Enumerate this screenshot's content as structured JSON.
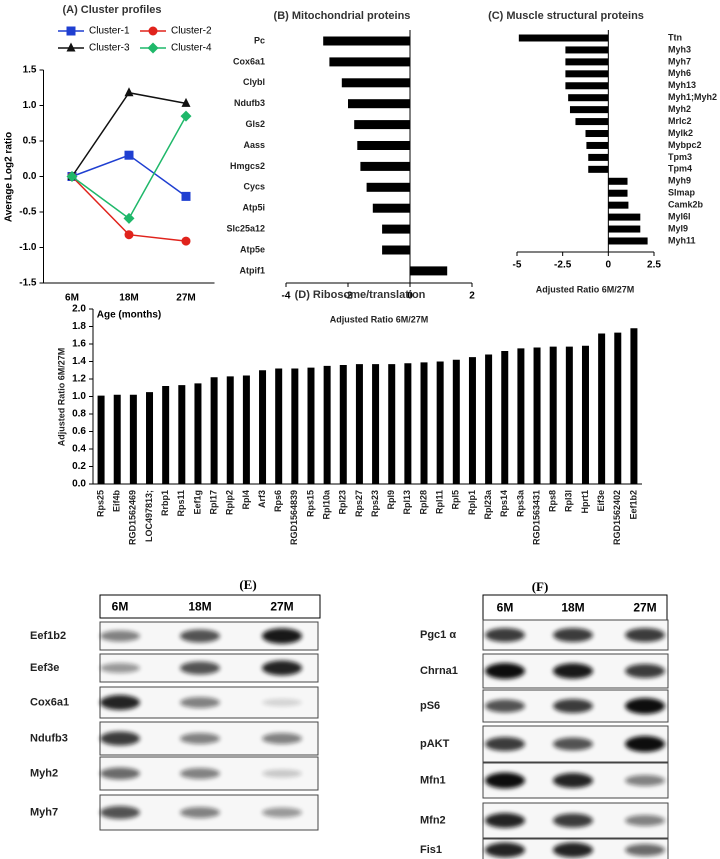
{
  "chart_data": [
    {
      "type": "line",
      "title": "(A) Cluster profiles",
      "xlabel": "Age (months)",
      "ylabel": "Average Log2 ratio",
      "categories": [
        "6M",
        "18M",
        "27M"
      ],
      "series": [
        {
          "name": "Cluster-1",
          "color": "#1f3fd1",
          "marker": "square",
          "values": [
            0,
            0.3,
            -0.28
          ]
        },
        {
          "name": "Cluster-2",
          "color": "#e0231c",
          "marker": "circle",
          "values": [
            0,
            -0.82,
            -0.91
          ]
        },
        {
          "name": "Cluster-3",
          "color": "#111111",
          "marker": "triangle",
          "values": [
            0,
            1.18,
            1.03
          ]
        },
        {
          "name": "Cluster-4",
          "color": "#1fb86a",
          "marker": "diamond",
          "values": [
            0,
            -0.59,
            0.85
          ]
        }
      ],
      "ylim": [
        -1.5,
        1.5
      ],
      "yticks": [
        1.5,
        {
          "value": 1,
          "label": "1.0"
        },
        0.5,
        {
          "value": 0,
          "label": "0.0"
        },
        -0.5,
        {
          "value": -1,
          "label": "-1.0"
        },
        -1.5
      ]
    },
    {
      "type": "barh",
      "title": "(B) Mitochondrial proteins",
      "xlabel": "Adjusted Ratio 6M/27M",
      "color": "#000000",
      "categories": [
        "Pc",
        "Cox6a1",
        "Clybl",
        "Ndufb3",
        "Gls2",
        "Aass",
        "Hmgcs2",
        "Cycs",
        "Atp5i",
        "Slc25a12",
        "Atp5e",
        "Atpif1"
      ],
      "values": [
        -2.8,
        -2.6,
        -2.2,
        -2.0,
        -1.8,
        -1.7,
        -1.6,
        -1.4,
        -1.2,
        -0.9,
        -0.9,
        1.2
      ],
      "xlim": [
        -4,
        2
      ],
      "xticks": [
        -4,
        -2,
        0,
        2
      ]
    },
    {
      "type": "barh",
      "title": "(C) Muscle structural proteins",
      "xlabel": "Adjusted Ratio 6M/27M",
      "color": "#000000",
      "categories": [
        "Ttn",
        "Myh3",
        "Myh7",
        "Myh6",
        "Myh13",
        "Myh1;Myh2",
        "Myh2",
        "Mrlc2",
        "Mylk2",
        "Mybpc2",
        "Tpm3",
        "Tpm4",
        "Myh9",
        "Slmap",
        "Camk2b",
        "Myl6l",
        "Myl9",
        "Myh11"
      ],
      "values": [
        -4.9,
        -2.35,
        -2.35,
        -2.35,
        -2.35,
        -2.2,
        -2.1,
        -1.8,
        -1.25,
        -1.2,
        -1.1,
        -1.1,
        1.05,
        1.05,
        1.1,
        1.75,
        1.75,
        2.15
      ],
      "xlim": [
        -5,
        2.5
      ],
      "xticks": [
        -5,
        -2.5,
        0,
        2.5
      ]
    },
    {
      "type": "bar",
      "title": "(D) Ribosome/translation",
      "ylabel": "Adjusted Ratio 6M/27M",
      "color": "#000000",
      "categories": [
        "Rps25",
        "Eif4b",
        "RGD1562469",
        "LOC497813;",
        "Rrbp1",
        "Rps11",
        "Eef1g",
        "Rpl17",
        "Rplp2",
        "Rpl4",
        "Arf3",
        "Rps6",
        "RGD1564839",
        "Rps15",
        "Rpl10a",
        "Rpl23",
        "Rps27",
        "Rps23",
        "Rpl9",
        "Rpl13",
        "Rpl28",
        "Rpl11",
        "Rpl5",
        "Rplp1",
        "Rpl23a",
        "Rps14",
        "Rps3a",
        "RGD1563431",
        "Rps8",
        "Rpl3l",
        "Hprt1",
        "Eif3e",
        "RGD1562402",
        "Eef1b2"
      ],
      "values": [
        1.01,
        1.02,
        1.02,
        1.05,
        1.12,
        1.13,
        1.15,
        1.22,
        1.23,
        1.24,
        1.3,
        1.32,
        1.32,
        1.33,
        1.35,
        1.36,
        1.37,
        1.37,
        1.37,
        1.38,
        1.39,
        1.4,
        1.42,
        1.45,
        1.48,
        1.52,
        1.55,
        1.56,
        1.57,
        1.57,
        1.58,
        1.72,
        1.73,
        1.78
      ],
      "ylim": [
        0,
        2
      ],
      "yticks": [
        {
          "value": 0,
          "label": "0.0"
        },
        0.2,
        0.4,
        0.6,
        0.8,
        {
          "value": 1,
          "label": "1.0"
        },
        1.2,
        1.4,
        1.6,
        1.8,
        {
          "value": 2,
          "label": "2.0"
        }
      ]
    }
  ],
  "blots": [
    {
      "title": "(E)",
      "lanes": [
        "6M",
        "18M",
        "27M"
      ],
      "rows": [
        "Eef1b2",
        "Eef3e",
        "Cox6a1",
        "Ndufb3",
        "Myh2",
        "Myh7"
      ]
    },
    {
      "title": "(F)",
      "lanes": [
        "6M",
        "18M",
        "27M"
      ],
      "rows": [
        "Pgc1 α",
        "Chrna1",
        "pS6",
        "pAKT",
        "Mfn1",
        "Mfn2",
        "Fis1"
      ]
    }
  ]
}
